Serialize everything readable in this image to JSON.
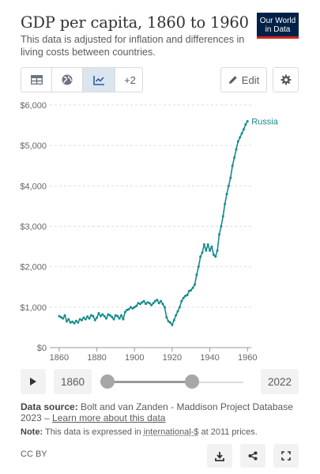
{
  "header": {
    "title": "GDP per capita, 1860 to 1960",
    "subtitle": "This data is adjusted for inflation and differences in living costs between countries.",
    "logo_line1": "Our World",
    "logo_line2": "in Data"
  },
  "toolbar": {
    "tab_icons": [
      "table-icon",
      "globe-icon",
      "line-chart-icon"
    ],
    "more_label": "+2",
    "edit_label": "Edit",
    "settings_icon": "gear-icon"
  },
  "timeline": {
    "start_year": "1860",
    "end_year": "2022",
    "range_start": 1860,
    "range_end": 1960,
    "min_year": 1820,
    "max_year": 2022
  },
  "footer": {
    "source_label": "Data source:",
    "source_text": "Bolt and van Zanden - Maddison Project Database 2023 –",
    "source_link": "Learn more about this data",
    "note_label": "Note:",
    "note_prefix": "This data is expressed in",
    "note_link": "international-$",
    "note_suffix": "at 2011 prices.",
    "license": "CC BY"
  },
  "colors": {
    "series": "#178b8b",
    "logo_bg": "#002147",
    "logo_accent": "#ce261e",
    "active_tab": "#dbe5f0"
  },
  "chart_data": {
    "type": "line",
    "title": "GDP per capita, 1860 to 1960",
    "xlabel": "",
    "ylabel": "",
    "xlim": [
      1855,
      1962
    ],
    "ylim": [
      0,
      6000
    ],
    "yticks": [
      "$0",
      "$1,000",
      "$2,000",
      "$3,000",
      "$4,000",
      "$5,000",
      "$6,000"
    ],
    "ytick_values": [
      0,
      1000,
      2000,
      3000,
      4000,
      5000,
      6000
    ],
    "xticks": [
      "1860",
      "1880",
      "1900",
      "1920",
      "1940",
      "1960"
    ],
    "xtick_values": [
      1860,
      1880,
      1900,
      1920,
      1940,
      1960
    ],
    "grid": "horizontal dashed",
    "series": [
      {
        "name": "Russia",
        "color": "#178b8b",
        "x": [
          1860,
          1861,
          1862,
          1863,
          1864,
          1865,
          1866,
          1867,
          1868,
          1869,
          1870,
          1871,
          1872,
          1873,
          1874,
          1875,
          1876,
          1877,
          1878,
          1879,
          1880,
          1881,
          1882,
          1883,
          1884,
          1885,
          1886,
          1887,
          1888,
          1889,
          1890,
          1891,
          1892,
          1893,
          1894,
          1895,
          1896,
          1897,
          1898,
          1899,
          1900,
          1901,
          1902,
          1903,
          1904,
          1905,
          1906,
          1907,
          1908,
          1909,
          1910,
          1911,
          1912,
          1913,
          1914,
          1915,
          1916,
          1917,
          1918,
          1919,
          1920,
          1921,
          1922,
          1923,
          1924,
          1925,
          1926,
          1927,
          1928,
          1929,
          1930,
          1931,
          1932,
          1933,
          1934,
          1935,
          1936,
          1937,
          1938,
          1939,
          1940,
          1941,
          1942,
          1943,
          1944,
          1945,
          1946,
          1947,
          1948,
          1949,
          1950,
          1951,
          1952,
          1953,
          1954,
          1955,
          1956,
          1957,
          1958,
          1959,
          1960
        ],
        "values": [
          780,
          750,
          720,
          800,
          650,
          700,
          620,
          640,
          600,
          660,
          620,
          700,
          680,
          740,
          700,
          770,
          720,
          800,
          780,
          680,
          740,
          850,
          780,
          820,
          780,
          720,
          820,
          800,
          760,
          700,
          800,
          780,
          720,
          800,
          700,
          880,
          930,
          950,
          1000,
          970,
          1000,
          1030,
          1100,
          1080,
          1120,
          1150,
          1080,
          1120,
          1100,
          1050,
          1100,
          1150,
          1180,
          1100,
          1150,
          1080,
          1000,
          750,
          650,
          620,
          560,
          680,
          800,
          900,
          1000,
          1150,
          1230,
          1280,
          1300,
          1400,
          1420,
          1480,
          1560,
          1800,
          2000,
          2250,
          2350,
          2550,
          2400,
          2550,
          2400,
          2500,
          2300,
          2250,
          2400,
          2800,
          3000,
          3250,
          3550,
          3800,
          4000,
          4200,
          4500,
          4700,
          4900,
          5100,
          5200,
          5300,
          5400,
          5520,
          5600
        ]
      }
    ]
  }
}
